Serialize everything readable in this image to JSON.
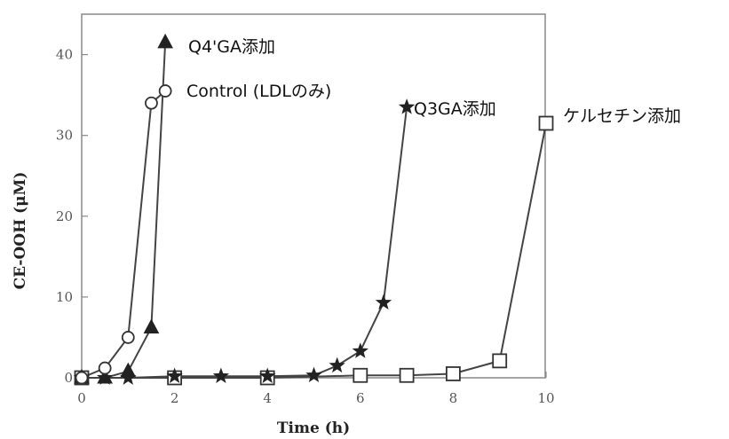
{
  "chart_data": {
    "type": "line",
    "xlabel": "Time (h)",
    "ylabel": "CE-OOH (μM)",
    "xlim": [
      0,
      10
    ],
    "ylim": [
      0,
      45
    ],
    "xticks": [
      0,
      2,
      4,
      6,
      8,
      10
    ],
    "yticks": [
      0,
      10,
      20,
      30,
      40
    ],
    "grid": false,
    "series": [
      {
        "name": "Q4'GA添加",
        "marker": "triangle-filled",
        "x": [
          0,
          0.5,
          1,
          1.5,
          1.8
        ],
        "y": [
          0,
          0,
          0.8,
          6.2,
          41.5
        ]
      },
      {
        "name": "Control (LDLのみ)",
        "marker": "circle-open",
        "x": [
          0,
          0.5,
          1,
          1.5,
          1.8
        ],
        "y": [
          0,
          1.2,
          5,
          34,
          35.5
        ]
      },
      {
        "name": "Q3GA添加",
        "marker": "star-filled",
        "x": [
          0,
          0.5,
          1,
          2,
          3,
          4,
          5,
          5.5,
          6,
          6.5,
          7
        ],
        "y": [
          0,
          0,
          0,
          0.2,
          0.2,
          0.2,
          0.3,
          1.5,
          3.3,
          9.3,
          33.5
        ]
      },
      {
        "name": "ケルセチン添加",
        "marker": "square-open",
        "x": [
          0,
          2,
          4,
          6,
          7,
          8,
          9,
          10
        ],
        "y": [
          0,
          0,
          0,
          0.3,
          0.3,
          0.5,
          2.1,
          31.5
        ]
      }
    ]
  }
}
